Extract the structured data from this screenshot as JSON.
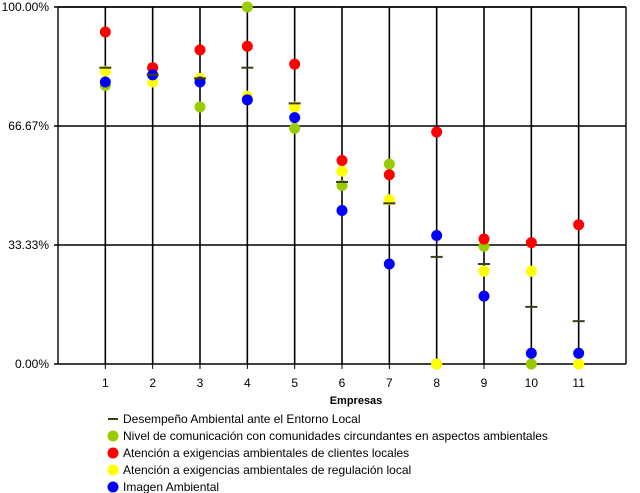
{
  "chart_data": {
    "type": "scatter",
    "title": "",
    "xlabel": "Empresas",
    "ylabel": "",
    "categories": [
      "1",
      "2",
      "3",
      "4",
      "5",
      "6",
      "7",
      "8",
      "9",
      "10",
      "11"
    ],
    "y_ticks": [
      "100.00%",
      "66.67%",
      "33.33%",
      "0.00%"
    ],
    "ylim": [
      0,
      100
    ],
    "grid": "horizontal and vertical",
    "legend_position": "bottom",
    "series": [
      {
        "name": "Desempeño Ambiental ante el Entorno Local",
        "marker": "dash",
        "color": "#3d3d1a",
        "values": [
          83,
          81,
          80,
          83,
          73,
          51,
          45,
          30,
          28,
          16,
          12
        ]
      },
      {
        "name": "Nivel de comunicación con comunidades circundantes en aspectos ambientales",
        "marker": "circle",
        "color": "#99cc00",
        "values": [
          78,
          83,
          72,
          100,
          66,
          50,
          56,
          0,
          33,
          0,
          0
        ]
      },
      {
        "name": "Atención a exigencias ambientales de clientes locales",
        "marker": "circle",
        "color": "#ff0000",
        "values": [
          93,
          83,
          88,
          89,
          84,
          57,
          53,
          65,
          35,
          34,
          39
        ]
      },
      {
        "name": "Atención a exigencias ambientales de regulación local",
        "marker": "circle",
        "color": "#ffff00",
        "values": [
          82,
          79,
          80,
          75,
          72,
          54,
          46,
          0,
          26,
          26,
          0
        ]
      },
      {
        "name": "Imagen Ambiental",
        "marker": "circle",
        "color": "#0000ff",
        "values": [
          79,
          81,
          79,
          74,
          69,
          43,
          28,
          36,
          19,
          3,
          3
        ]
      }
    ]
  }
}
